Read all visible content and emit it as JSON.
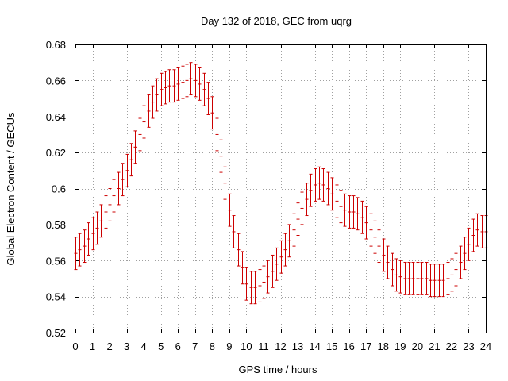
{
  "chart_data": {
    "type": "line",
    "title": "Day 132 of 2018, GEC from uqrg",
    "xlabel": "GPS time / hours",
    "ylabel": "Global Electron Content / GECUs",
    "xlim": [
      0,
      24
    ],
    "ylim": [
      0.52,
      0.68
    ],
    "xticks": [
      0,
      1,
      2,
      3,
      4,
      5,
      6,
      7,
      8,
      9,
      10,
      11,
      12,
      13,
      14,
      15,
      16,
      17,
      18,
      19,
      20,
      21,
      22,
      23,
      24
    ],
    "xtick_labels": [
      "0",
      "1",
      "2",
      "3",
      "4",
      "5",
      "6",
      "7",
      "8",
      "9",
      "10",
      "11",
      "12",
      "13",
      "14",
      "15",
      "16",
      "17",
      "18",
      "19",
      "20",
      "21",
      "22",
      "23",
      "24"
    ],
    "yticks": [
      0.52,
      0.54,
      0.56,
      0.58,
      0.6,
      0.62,
      0.64,
      0.66,
      0.68
    ],
    "ytick_labels": [
      "0.52",
      "0.54",
      "0.56",
      "0.58",
      "0.6",
      "0.62",
      "0.64",
      "0.66",
      "0.68"
    ],
    "grid": true,
    "error_bar_color": "#cc0000",
    "series": [
      {
        "name": "GEC",
        "style": "errorbars",
        "error": 0.009,
        "x": [
          0,
          0.25,
          0.5,
          0.75,
          1,
          1.25,
          1.5,
          1.75,
          2,
          2.25,
          2.5,
          2.75,
          3,
          3.25,
          3.5,
          3.75,
          4,
          4.25,
          4.5,
          4.75,
          5,
          5.25,
          5.5,
          5.75,
          6,
          6.25,
          6.5,
          6.75,
          7,
          7.25,
          7.5,
          7.75,
          8,
          8.25,
          8.5,
          8.75,
          9,
          9.25,
          9.5,
          9.75,
          10,
          10.25,
          10.5,
          10.75,
          11,
          11.25,
          11.5,
          11.75,
          12,
          12.25,
          12.5,
          12.75,
          13,
          13.25,
          13.5,
          13.75,
          14,
          14.25,
          14.5,
          14.75,
          15,
          15.25,
          15.5,
          15.75,
          16,
          16.25,
          16.5,
          16.75,
          17,
          17.25,
          17.5,
          17.75,
          18,
          18.25,
          18.5,
          18.75,
          19,
          19.25,
          19.5,
          19.75,
          20,
          20.25,
          20.5,
          20.75,
          21,
          21.25,
          21.5,
          21.75,
          22,
          22.25,
          22.5,
          22.75,
          23,
          23.25,
          23.5,
          23.75,
          24
        ],
        "y": [
          0.564,
          0.566,
          0.568,
          0.572,
          0.575,
          0.578,
          0.582,
          0.587,
          0.591,
          0.596,
          0.6,
          0.605,
          0.61,
          0.616,
          0.623,
          0.63,
          0.637,
          0.643,
          0.648,
          0.652,
          0.655,
          0.656,
          0.657,
          0.657,
          0.658,
          0.659,
          0.66,
          0.661,
          0.66,
          0.658,
          0.655,
          0.65,
          0.642,
          0.63,
          0.618,
          0.603,
          0.588,
          0.576,
          0.566,
          0.556,
          0.547,
          0.545,
          0.545,
          0.546,
          0.548,
          0.551,
          0.554,
          0.558,
          0.562,
          0.566,
          0.571,
          0.577,
          0.583,
          0.589,
          0.594,
          0.599,
          0.602,
          0.603,
          0.602,
          0.6,
          0.597,
          0.593,
          0.59,
          0.588,
          0.587,
          0.587,
          0.586,
          0.584,
          0.581,
          0.577,
          0.573,
          0.568,
          0.563,
          0.559,
          0.555,
          0.552,
          0.551,
          0.55,
          0.55,
          0.55,
          0.55,
          0.55,
          0.55,
          0.549,
          0.549,
          0.549,
          0.549,
          0.55,
          0.552,
          0.555,
          0.559,
          0.564,
          0.569,
          0.574,
          0.577,
          0.576,
          0.576
        ]
      }
    ]
  }
}
